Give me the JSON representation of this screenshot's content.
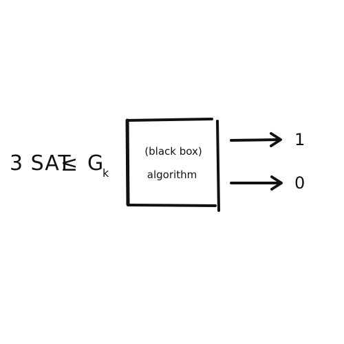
{
  "reduction": {
    "left": "3 SAT",
    "relation": "≤",
    "right": "G",
    "subscript": "k"
  },
  "box": {
    "line1": "(black box)",
    "line2": "algorithm"
  },
  "outputs": [
    {
      "label": "1"
    },
    {
      "label": "0"
    }
  ],
  "colors": {
    "ink": "#111111",
    "background": "#ffffff"
  },
  "icons": {
    "arrow": "right-arrow-icon"
  }
}
